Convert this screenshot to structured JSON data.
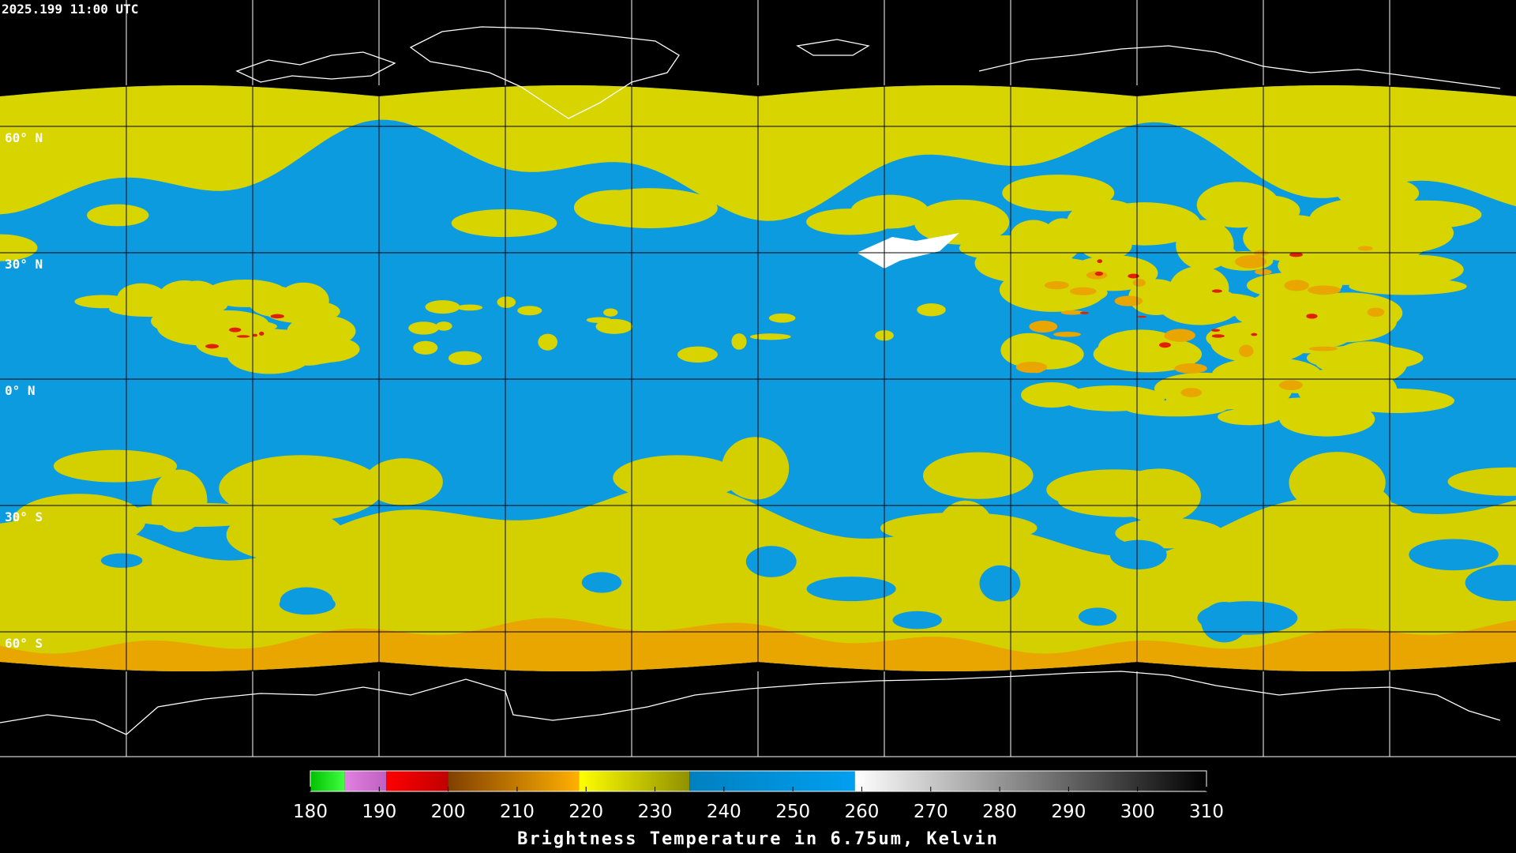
{
  "header": {
    "timestamp": "2025.199 11:00 UTC"
  },
  "map": {
    "lat_lines": [
      {
        "value": 60,
        "label": "60° N"
      },
      {
        "value": 30,
        "label": "30° N"
      },
      {
        "value": 0,
        "label": "0° N"
      },
      {
        "value": -30,
        "label": "30° S"
      },
      {
        "value": -60,
        "label": "60° S"
      }
    ]
  },
  "colorbar": {
    "range": [
      180,
      310
    ],
    "ticks": [
      180,
      190,
      200,
      210,
      220,
      230,
      240,
      250,
      260,
      270,
      280,
      290,
      300,
      310
    ],
    "segments": [
      {
        "from": 180,
        "to": 185,
        "colors": [
          "#00c000",
          "#40ff40"
        ]
      },
      {
        "from": 185,
        "to": 191,
        "colors": [
          "#e080e0",
          "#c060c0"
        ]
      },
      {
        "from": 191,
        "to": 200,
        "colors": [
          "#ff0000",
          "#c00000"
        ]
      },
      {
        "from": 200,
        "to": 219,
        "colors": [
          "#804000",
          "#ffb000"
        ]
      },
      {
        "from": 219,
        "to": 235,
        "colors": [
          "#ffff00",
          "#909000"
        ]
      },
      {
        "from": 235,
        "to": 259,
        "colors": [
          "#0080c0",
          "#00a0f0"
        ]
      },
      {
        "from": 259,
        "to": 310,
        "colors": [
          "#ffffff",
          "#000000"
        ]
      }
    ],
    "label": "Brightness Temperature in 6.75um, Kelvin"
  }
}
